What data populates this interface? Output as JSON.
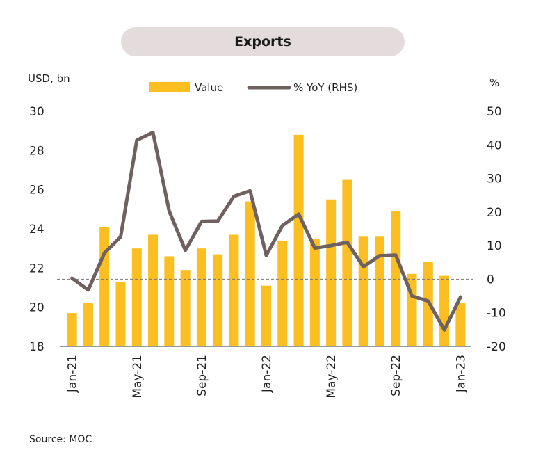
{
  "chart_data": {
    "type": "bar+line",
    "title": "Exports",
    "y_left_label": "USD, bn",
    "y_right_label": "%",
    "y_left_range": [
      18,
      30
    ],
    "y_left_ticks": [
      "30",
      "28",
      "26",
      "24",
      "22",
      "20",
      "18"
    ],
    "y_right_range": [
      -20,
      50
    ],
    "y_right_ticks": [
      "50",
      "40",
      "30",
      "20",
      "10",
      "0",
      "-10",
      "-20"
    ],
    "x_tick_labels": [
      "Jan-21",
      "May-21",
      "Sep-21",
      "Jan-22",
      "May-22",
      "Sep-22",
      "Jan-23"
    ],
    "x_tick_indices": [
      0,
      4,
      8,
      12,
      16,
      20,
      24
    ],
    "categories": [
      "Jan-21",
      "Feb-21",
      "Mar-21",
      "Apr-21",
      "May-21",
      "Jun-21",
      "Jul-21",
      "Aug-21",
      "Sep-21",
      "Oct-21",
      "Nov-21",
      "Dec-21",
      "Jan-22",
      "Feb-22",
      "Mar-22",
      "Apr-22",
      "May-22",
      "Jun-22",
      "Jul-22",
      "Aug-22",
      "Sep-22",
      "Oct-22",
      "Nov-22",
      "Dec-22",
      "Jan-23"
    ],
    "series": [
      {
        "name": "Value",
        "type": "bar",
        "axis": "left",
        "color": "#fbbf22",
        "values": [
          19.7,
          20.2,
          24.1,
          21.3,
          23.0,
          23.7,
          22.6,
          21.9,
          23.0,
          22.7,
          23.7,
          25.4,
          21.1,
          23.4,
          28.8,
          23.5,
          25.5,
          26.5,
          23.6,
          23.6,
          24.9,
          21.7,
          22.3,
          21.6,
          20.2
        ]
      },
      {
        "name": "% YoY (RHS)",
        "type": "line",
        "axis": "right",
        "color": "#6e6160",
        "values": [
          0.3,
          -3.2,
          7.8,
          12.6,
          41.4,
          43.7,
          20.3,
          8.6,
          17.2,
          17.3,
          24.7,
          26.3,
          7.1,
          16.0,
          19.4,
          9.3,
          10.0,
          11.0,
          3.7,
          7.0,
          7.2,
          -5.0,
          -6.5,
          -15.1,
          -5.3
        ]
      }
    ],
    "reference_line": {
      "axis": "right",
      "value": 0,
      "style": "dashed"
    },
    "legend": "top-center",
    "grid": false
  },
  "source": "Source: MOC"
}
